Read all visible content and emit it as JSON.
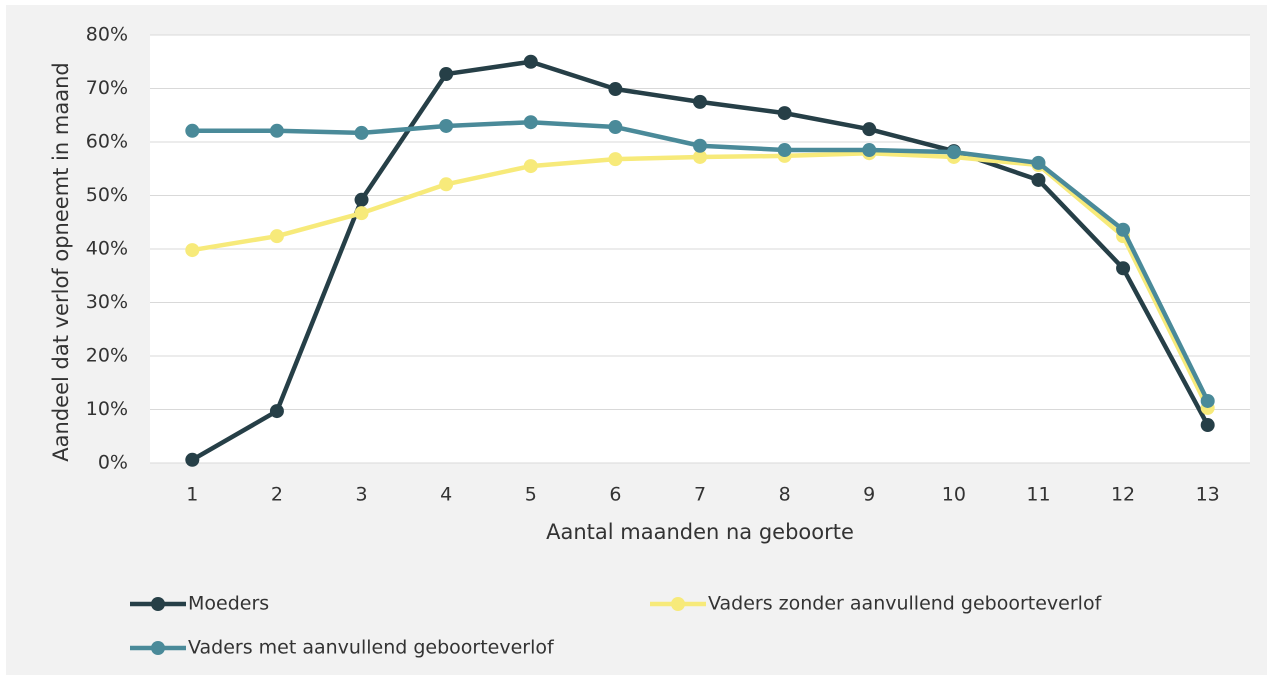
{
  "chart_data": {
    "type": "line",
    "x_label": "Aantal maanden na geboorte",
    "y_label": "Aandeel dat verlof opneemt in maand",
    "categories": [
      "1",
      "2",
      "3",
      "4",
      "5",
      "6",
      "7",
      "8",
      "9",
      "10",
      "11",
      "12",
      "13"
    ],
    "series": [
      {
        "name": "Moeders",
        "color": "#263f47",
        "values": [
          0.6,
          9.7,
          49.2,
          72.7,
          75.0,
          69.9,
          67.5,
          65.4,
          62.4,
          58.3,
          52.9,
          36.4,
          7.1
        ]
      },
      {
        "name": "Vaders zonder aanvullend geboorteverlof",
        "color": "#f7ea7a",
        "values": [
          39.8,
          42.4,
          46.7,
          52.1,
          55.5,
          56.8,
          57.2,
          57.4,
          57.9,
          57.2,
          55.7,
          42.4,
          10.3
        ]
      },
      {
        "name": "Vaders met aanvullend geboorteverlof",
        "color": "#4a8a99",
        "values": [
          62.1,
          62.1,
          61.7,
          63.0,
          63.7,
          62.8,
          59.3,
          58.5,
          58.5,
          58.1,
          56.1,
          43.6,
          11.6
        ]
      }
    ],
    "ylim": [
      0,
      80
    ],
    "yticks": [
      {
        "value": 0,
        "label": "0%"
      },
      {
        "value": 10,
        "label": "10%"
      },
      {
        "value": 20,
        "label": "20%"
      },
      {
        "value": 30,
        "label": "30%"
      },
      {
        "value": 40,
        "label": "40%"
      },
      {
        "value": 50,
        "label": "50%"
      },
      {
        "value": 60,
        "label": "60%"
      },
      {
        "value": 70,
        "label": "70%"
      },
      {
        "value": 80,
        "label": "80%"
      }
    ],
    "grid": true,
    "legend": "bottom"
  }
}
